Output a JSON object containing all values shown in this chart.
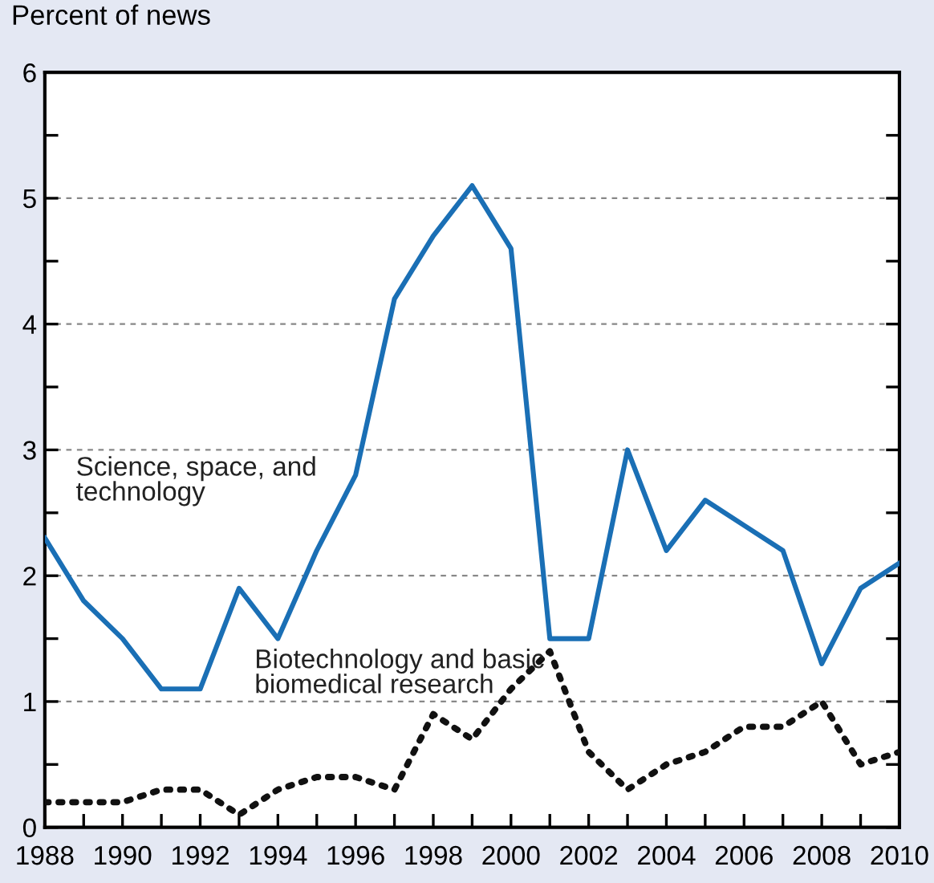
{
  "chart_data": {
    "type": "line",
    "ylabel": "Percent of news",
    "x": [
      1988,
      1989,
      1990,
      1991,
      1992,
      1993,
      1994,
      1995,
      1996,
      1997,
      1998,
      1999,
      2000,
      2001,
      2002,
      2003,
      2004,
      2005,
      2006,
      2007,
      2008,
      2009,
      2010
    ],
    "series": [
      {
        "name": "Science, space, and technology",
        "color": "#1a6fb5",
        "line_style": "solid",
        "values": [
          2.3,
          1.8,
          1.5,
          1.1,
          1.1,
          1.9,
          1.5,
          2.2,
          2.8,
          4.2,
          4.7,
          5.1,
          4.6,
          1.5,
          1.5,
          3.0,
          2.2,
          2.6,
          2.4,
          2.2,
          1.3,
          1.9,
          2.1
        ]
      },
      {
        "name": "Biotechnology and basic biomedical research",
        "color": "#111111",
        "line_style": "dotted",
        "values": [
          0.2,
          0.2,
          0.2,
          0.3,
          0.3,
          0.1,
          0.3,
          0.4,
          0.4,
          0.3,
          0.9,
          0.7,
          1.1,
          1.4,
          0.6,
          0.3,
          0.5,
          0.6,
          0.8,
          0.8,
          1.0,
          0.5,
          0.6
        ]
      }
    ],
    "xlim": [
      1988,
      2010
    ],
    "xticks": [
      1988,
      {
        "value": 1989,
        "label": null
      },
      1990,
      {
        "value": 1991,
        "label": null
      },
      1992,
      {
        "value": 1993,
        "label": null
      },
      1994,
      {
        "value": 1995,
        "label": null
      },
      1996,
      {
        "value": 1997,
        "label": null
      },
      1998,
      {
        "value": 1999,
        "label": null
      },
      2000,
      {
        "value": 2001,
        "label": null
      },
      2002,
      {
        "value": 2003,
        "label": null
      },
      2004,
      {
        "value": 2005,
        "label": null
      },
      2006,
      {
        "value": 2007,
        "label": null
      },
      2008,
      {
        "value": 2009,
        "label": null
      },
      2010
    ],
    "ylim": [
      0,
      6
    ],
    "yticks": [
      0,
      {
        "value": 0.5,
        "label": null
      },
      1,
      {
        "value": 1.5,
        "label": null
      },
      2,
      {
        "value": 2.5,
        "label": null
      },
      3,
      {
        "value": 3.5,
        "label": null
      },
      4,
      {
        "value": 4.5,
        "label": null
      },
      5,
      {
        "value": 5.5,
        "label": null
      },
      6
    ],
    "grid": "y",
    "legend": false,
    "marker": "none"
  }
}
